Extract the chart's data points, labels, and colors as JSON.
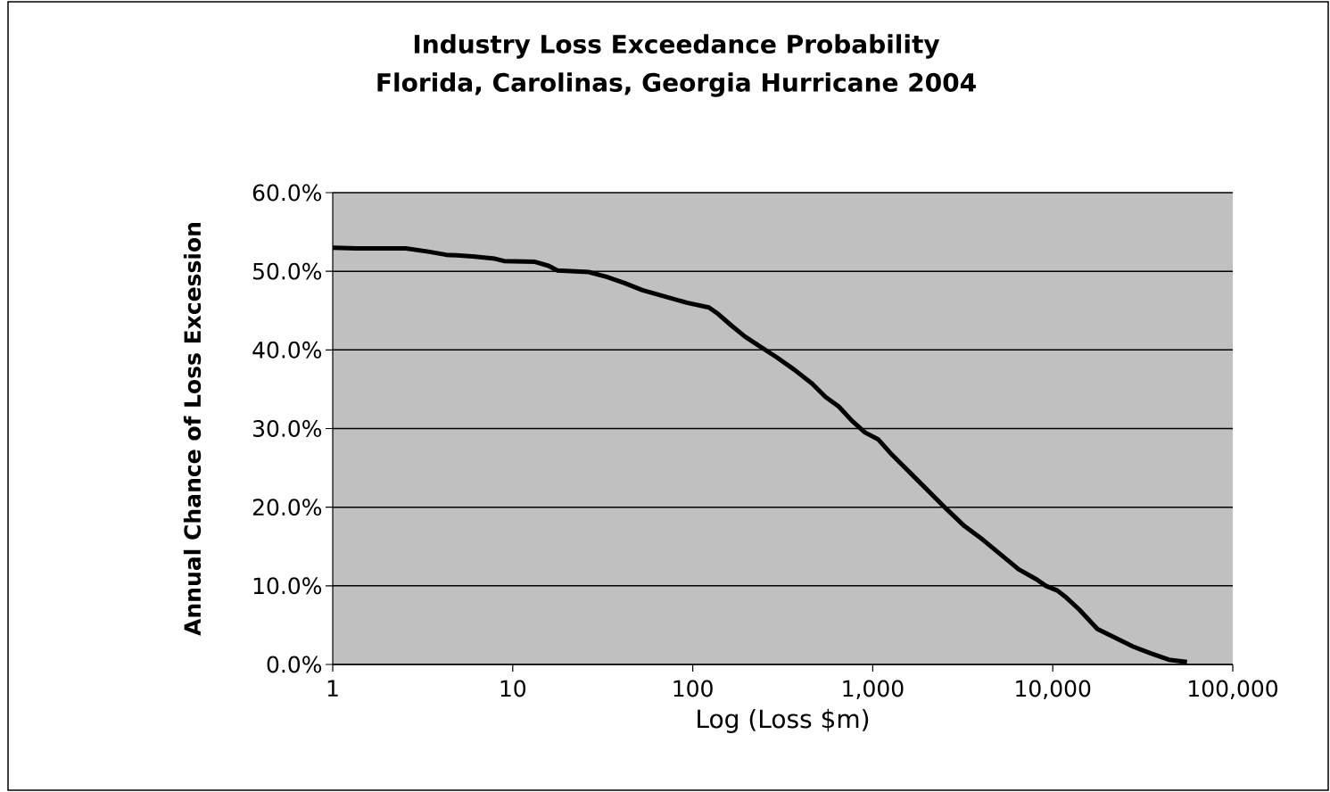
{
  "chart_data": {
    "type": "line",
    "title": "Industry Loss Exceedance Probability",
    "subtitle": "Florida, Carolinas, Georgia Hurricane 2004",
    "xlabel": "Log (Loss $m)",
    "ylabel": "Annual Chance of Loss Excession",
    "x": [
      1,
      1.36,
      2.55,
      3.39,
      4.26,
      6.0,
      7.97,
      8.94,
      13.3,
      15.8,
      17.7,
      26.4,
      33.2,
      41.8,
      52.6,
      69.8,
      92.6,
      123,
      138,
      164,
      195,
      231,
      291,
      366,
      461,
      548,
      647,
      765,
      905,
      1075,
      1275,
      1610,
      2030,
      2560,
      3230,
      4070,
      5130,
      6470,
      8150,
      9150,
      10600,
      11900,
      14000,
      17700,
      22200,
      27800,
      35100,
      44200,
      55700
    ],
    "series": [
      {
        "color": "#000000",
        "values": [
          53.0,
          52.9,
          52.9,
          52.5,
          52.1,
          51.9,
          51.6,
          51.3,
          51.2,
          50.7,
          50.1,
          49.9,
          49.3,
          48.5,
          47.6,
          46.8,
          46.0,
          45.4,
          44.6,
          43.1,
          41.7,
          40.6,
          39.1,
          37.5,
          35.7,
          34.0,
          32.8,
          31.0,
          29.5,
          28.6,
          26.7,
          24.4,
          22.1,
          19.8,
          17.6,
          15.9,
          14.0,
          12.1,
          10.8,
          10.0,
          9.4,
          8.5,
          7.0,
          4.5,
          3.4,
          2.3,
          1.4,
          0.6,
          0.3
        ]
      }
    ],
    "log": "x",
    "grid": "y",
    "xlim": [
      1,
      100000
    ],
    "ylim": [
      0,
      60
    ],
    "xticks": [
      1,
      10,
      100,
      {
        "value": 1000,
        "label": "1,000"
      },
      {
        "value": 10000,
        "label": "10,000"
      },
      {
        "value": 100000,
        "label": "100,000"
      }
    ],
    "yticks": [
      {
        "value": 0,
        "label": "0.0%"
      },
      {
        "value": 10,
        "label": "10.0%"
      },
      {
        "value": 20,
        "label": "20.0%"
      },
      {
        "value": 30,
        "label": "30.0%"
      },
      {
        "value": 40,
        "label": "40.0%"
      },
      {
        "value": 50,
        "label": "50.0%"
      },
      {
        "value": 60,
        "label": "60.0%"
      }
    ]
  }
}
